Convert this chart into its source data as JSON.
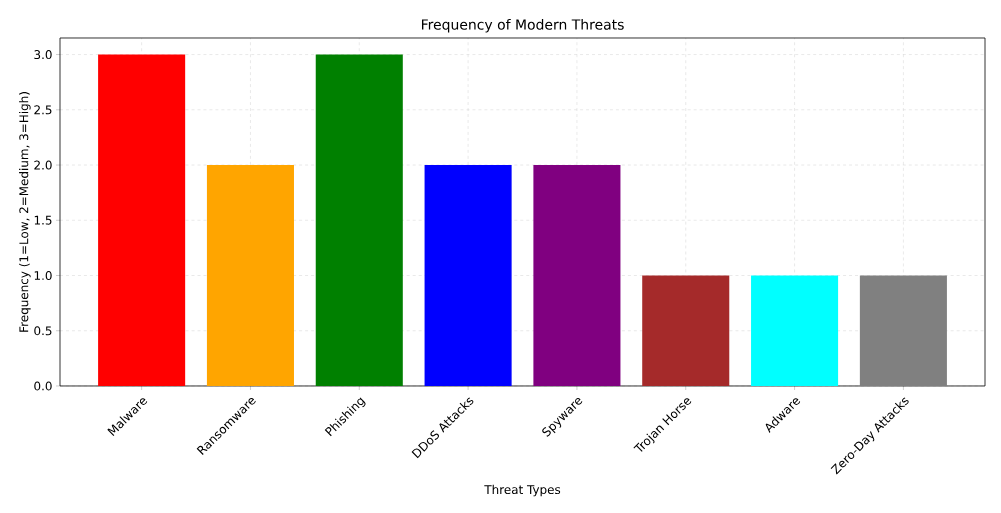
{
  "chart_data": {
    "type": "bar",
    "title": "Frequency of Modern Threats",
    "xlabel": "Threat Types",
    "ylabel": "Frequency (1=Low, 2=Medium, 3=High)",
    "categories": [
      "Malware",
      "Ransomware",
      "Phishing",
      "DDoS Attacks",
      "Spyware",
      "Trojan Horse",
      "Adware",
      "Zero-Day Attacks"
    ],
    "values": [
      3,
      2,
      3,
      2,
      2,
      1,
      1,
      1
    ],
    "colors": [
      "#ff0000",
      "#ffa500",
      "#008000",
      "#0000ff",
      "#800080",
      "#a52a2a",
      "#00ffff",
      "#808080"
    ],
    "ylim": [
      0,
      3.15
    ],
    "yticks": [
      {
        "value": 0,
        "label": "0.0"
      },
      {
        "value": 0.5,
        "label": "0.5"
      },
      {
        "value": 1,
        "label": "1.0"
      },
      {
        "value": 1.5,
        "label": "1.5"
      },
      {
        "value": 2,
        "label": "2.0"
      },
      {
        "value": 2.5,
        "label": "2.5"
      },
      {
        "value": 3,
        "label": "3.0"
      }
    ],
    "grid": true
  }
}
